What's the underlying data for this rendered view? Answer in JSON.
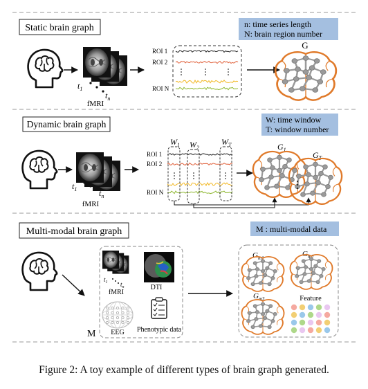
{
  "sections": [
    {
      "title": "Static brain graph",
      "legend": [
        "n: time series length",
        "N: brain region number"
      ],
      "input_label": "fMRI",
      "t_start": "t",
      "t_start_sub": "1",
      "t_end": "t",
      "t_end_sub": "n",
      "roi_labels": [
        "ROI 1",
        "ROI 2",
        "ROI N"
      ],
      "graph_label": "G"
    },
    {
      "title": "Dynamic brain graph",
      "legend": [
        "W: time window",
        "T: window number"
      ],
      "input_label": "fMRI",
      "t_start": "t",
      "t_start_sub": "1",
      "t_end": "t",
      "t_end_sub": "n",
      "roi_labels": [
        "ROI 1",
        "ROI 2",
        "ROI N"
      ],
      "windows": [
        {
          "base": "W",
          "sub": "1"
        },
        {
          "base": "W",
          "sub": "2"
        },
        {
          "base": "W",
          "sub": "T"
        }
      ],
      "graphs": [
        {
          "base": "G",
          "sub": "1"
        },
        {
          "base": "G",
          "sub": "T"
        }
      ]
    },
    {
      "title": "Multi-modal brain graph",
      "legend": [
        "M : multi-modal data"
      ],
      "modality_label": "M",
      "modalities": [
        "fMRI",
        "DTI",
        "EEG",
        "Phenotypic data"
      ],
      "t_start": "t",
      "t_start_sub": "1",
      "t_end": "t",
      "t_end_sub": "n",
      "graphs": [
        {
          "base": "G",
          "sub": "m1"
        },
        {
          "base": "G",
          "sub": "m2"
        },
        {
          "base": "G",
          "sub": "m3"
        }
      ],
      "feature_label": "Feature"
    }
  ],
  "caption": "Figure 2: A toy example of different types of brain graph generated.",
  "colors": {
    "legend_bg": "#a4bfe0",
    "brain_outline": "#e07a2a",
    "node": "#9a9a9a",
    "edge": "#9a9a9a",
    "dash": "#888888",
    "roi1": "#222222",
    "roi2": "#e0603a",
    "roi3": "#f2b824",
    "roi4": "#8fb832"
  },
  "feature_colors": [
    "#f5a9a0",
    "#f2cf74",
    "#9ac8ea",
    "#aed88a",
    "#e9c7f0"
  ],
  "icons": [
    "head-brain-icon",
    "fmri-stack-icon",
    "dti-icon",
    "eeg-cap-icon",
    "phenotypic-clipboard-icon",
    "brain-graph-icon"
  ]
}
